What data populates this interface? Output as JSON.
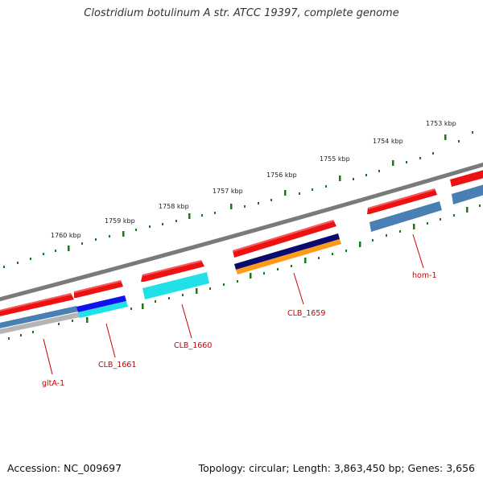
{
  "title": "Clostridium botulinum A str. ATCC 19397, complete genome",
  "footer": {
    "accession": "Accession: NC_009697",
    "summary": "Topology: circular; Length: 3,863,450 bp; Genes: 3,656"
  },
  "colors": {
    "backbone": "#7a7a7a",
    "tick": "#1a7a1a",
    "gene_label": "#cc0000",
    "cds_red": "#ee1111",
    "blue": "#1111ee",
    "navy": "#0a0a6e",
    "cyan": "#22e0e8",
    "orange": "#ff9a18",
    "steel": "#4a7fb4",
    "gray": "#b4b4b4"
  },
  "kbp_labels": [
    "1753 kbp",
    "1754 kbp",
    "1755 kbp",
    "1756 kbp",
    "1757 kbp",
    "1758 kbp",
    "1759 kbp",
    "1760 kbp"
  ],
  "genes": [
    {
      "label": "hom-1"
    },
    {
      "label": "CLB_1659"
    },
    {
      "label": "CLB_1660"
    },
    {
      "label": "CLB_1661"
    },
    {
      "label": "gltA-1"
    }
  ]
}
